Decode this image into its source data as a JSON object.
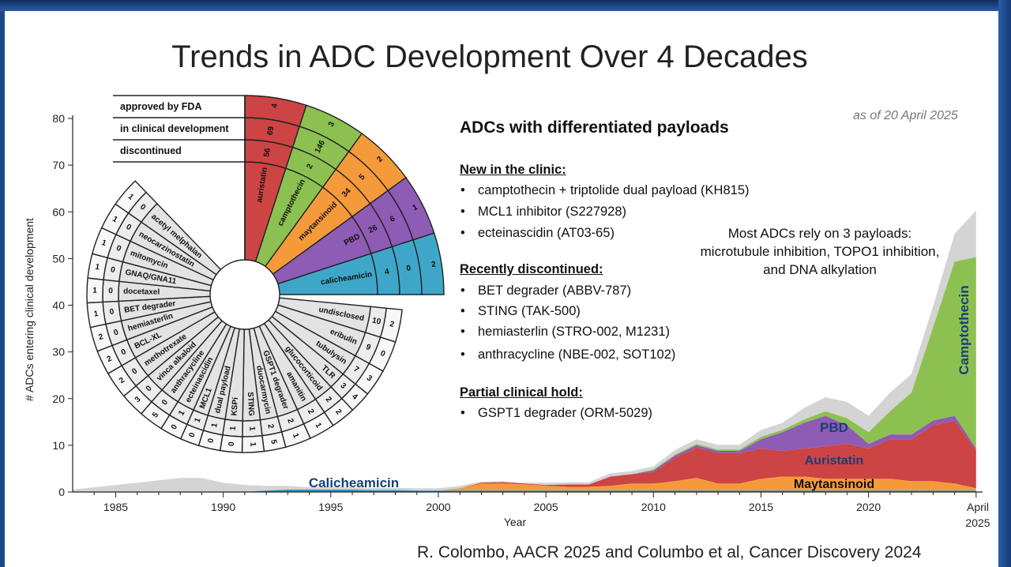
{
  "slide": {
    "title": "Trends in ADC Development Over 4 Decades",
    "as_of": "as of 20 April 2025",
    "citation": "R. Colombo, AACR 2025 and Columbo et al, Cancer Discovery 2024"
  },
  "panel": {
    "title": "ADCs with differentiated payloads",
    "sections": [
      {
        "heading": "New in the clinic:",
        "items": [
          "camptothecin + triptolide dual payload (KH815)",
          "MCL1 inhibitor (S227928)",
          "ecteinascidin (AT03-65)"
        ]
      },
      {
        "heading": "Recently discontinued:",
        "items": [
          "BET degrader (ABBV-787)",
          "STING (TAK-500)",
          "hemiasterlin (STRO-002, M1231)",
          "anthracycline (NBE-002, SOT102)"
        ]
      },
      {
        "heading": "Partial clinical hold:",
        "items": [
          "GSPT1 degrader (ORM-5029)"
        ]
      }
    ],
    "note": "Most ADCs rely on 3 payloads: microtubule inhibition, TOPO1 inhibition, and DNA alkylation"
  },
  "chart_data": [
    {
      "type": "area",
      "xlabel": "Year",
      "ylabel": "# ADCs entering clinical development",
      "ylim": [
        0,
        80
      ],
      "xlim": [
        1983,
        2025.3
      ],
      "y_ticks": [
        0,
        10,
        20,
        30,
        40,
        50,
        60,
        70,
        80
      ],
      "x_ticks": [
        "1985",
        "1990",
        "1995",
        "2000",
        "2005",
        "2010",
        "2015",
        "2020"
      ],
      "x_end_label": [
        "April",
        "2025"
      ],
      "colors": {
        "Other": "#d4d4d4",
        "Camptothecin": "#8cc152",
        "PBD": "#8e5bb5",
        "Auristatin": "#cd4444",
        "Maytansinoid": "#f59a3a",
        "Calicheamicin": "#3a8fbf"
      },
      "series_labels": [
        {
          "name": "Calicheamicin",
          "color": "#15407a"
        },
        {
          "name": "Maytansinoid",
          "color": "#111111"
        },
        {
          "name": "Auristatin",
          "color": "#15407a"
        },
        {
          "name": "PBD",
          "color": "#15407a"
        },
        {
          "name": "Camptothecin",
          "color": "#15407a"
        }
      ],
      "x": [
        1983,
        1985,
        1986,
        1987,
        1988,
        1989,
        1990,
        1991,
        1992,
        1993,
        1994,
        1995,
        1996,
        1997,
        1998,
        1999,
        2000,
        2001,
        2002,
        2003,
        2004,
        2005,
        2006,
        2007,
        2008,
        2009,
        2010,
        2011,
        2012,
        2013,
        2014,
        2015,
        2016,
        2017,
        2018,
        2019,
        2020,
        2021,
        2022,
        2023,
        2024,
        2025
      ],
      "series": [
        {
          "name": "Calicheamicin",
          "values": [
            0,
            0,
            0,
            0,
            0,
            0,
            0,
            0,
            0.3,
            0.5,
            0.5,
            0.5,
            0.5,
            0.4,
            0.4,
            0.3,
            0.3,
            0.3,
            0.3,
            0.3,
            0.3,
            0.3,
            0.3,
            0.3,
            0.3,
            0.3,
            0.3,
            0.3,
            0.3,
            0.3,
            0.3,
            0.3,
            0.3,
            0.3,
            0.3,
            0.3,
            0.3,
            0.3,
            0.3,
            0.3,
            0.3,
            0.3
          ]
        },
        {
          "name": "Maytansinoid",
          "values": [
            0,
            0,
            0,
            0,
            0,
            0,
            0,
            0,
            0,
            0,
            0,
            0,
            0,
            0,
            0,
            0,
            0,
            0.5,
            1.5,
            1.5,
            1.3,
            1.0,
            0.8,
            0.8,
            1.0,
            1.5,
            1.5,
            2.0,
            2.7,
            1.5,
            1.5,
            2.5,
            3.0,
            3.0,
            2.5,
            2.5,
            2.5,
            2.5,
            2.0,
            2.0,
            1.5,
            0.5
          ]
        },
        {
          "name": "Auristatin",
          "values": [
            0,
            0,
            0,
            0,
            0,
            0,
            0,
            0,
            0,
            0,
            0,
            0,
            0,
            0,
            0,
            0,
            0,
            0,
            0.2,
            0.3,
            0.2,
            0.2,
            0.5,
            0.5,
            2.0,
            2.0,
            2.5,
            5.0,
            6.5,
            6.5,
            6.5,
            6.5,
            5.5,
            6.0,
            7.0,
            7.5,
            6.5,
            8.5,
            9.0,
            12.0,
            13.5,
            8.0
          ]
        },
        {
          "name": "PBD",
          "values": [
            0,
            0,
            0,
            0,
            0,
            0,
            0,
            0,
            0,
            0,
            0,
            0,
            0,
            0,
            0,
            0,
            0,
            0,
            0,
            0,
            0,
            0,
            0,
            0,
            0,
            0,
            0.3,
            0.5,
            0.5,
            0.5,
            0.5,
            2.0,
            4.0,
            5.5,
            6.5,
            4.0,
            1.0,
            1.0,
            1.0,
            1.0,
            1.0,
            0.5
          ]
        },
        {
          "name": "Camptothecin",
          "values": [
            0,
            0,
            0,
            0,
            0,
            0,
            0,
            0,
            0,
            0,
            0,
            0,
            0,
            0,
            0,
            0,
            0,
            0,
            0,
            0,
            0,
            0,
            0,
            0,
            0,
            0,
            0.2,
            0.2,
            0.3,
            0.3,
            0.3,
            0.5,
            0.5,
            0.7,
            1.0,
            1.5,
            2.5,
            5.0,
            9.0,
            20.0,
            33.0,
            41.0
          ]
        },
        {
          "name": "Other",
          "values": [
            0.5,
            1.5,
            2.0,
            2.5,
            3.0,
            3.0,
            2.0,
            1.5,
            1.0,
            0.8,
            0.5,
            0.5,
            0.5,
            0.5,
            0.5,
            0.5,
            0.5,
            0.5,
            0.2,
            0.2,
            0.2,
            0.5,
            0.5,
            0.5,
            0.7,
            0.7,
            0.7,
            1.0,
            1.0,
            1.0,
            1.0,
            1.5,
            1.5,
            2.5,
            3.0,
            3.5,
            3.5,
            4.0,
            4.0,
            4.5,
            6.0,
            10.0
          ]
        }
      ]
    },
    {
      "type": "table",
      "layout": "radial",
      "rows": [
        "approved by FDA",
        "in clinical development",
        "discontinued"
      ],
      "highlighted": [
        {
          "payload": "auristatin",
          "color": "#cd4444",
          "approved": "4",
          "clinical": "69",
          "discontinued": "56"
        },
        {
          "payload": "camptothecin",
          "color": "#8cc152",
          "approved": "3",
          "clinical": "146",
          "discontinued": "2"
        },
        {
          "payload": "maytansinoid",
          "color": "#f59a3a",
          "approved": "2",
          "clinical": "5",
          "discontinued": "34"
        },
        {
          "payload": "PBD",
          "color": "#8e5bb5",
          "approved": "1",
          "clinical": "6",
          "discontinued": "26"
        },
        {
          "payload": "calicheamicin",
          "color": "#3ea7c9",
          "approved": "2",
          "clinical": "0",
          "discontinued": "4"
        }
      ],
      "others": [
        {
          "payload": "undisclosed",
          "clinical": "10",
          "discontinued": "2"
        },
        {
          "payload": "eribulin",
          "clinical": "9",
          "discontinued": "0"
        },
        {
          "payload": "tubulysin",
          "clinical": "7",
          "discontinued": "3"
        },
        {
          "payload": "TLR",
          "clinical": "3",
          "discontinued": "4"
        },
        {
          "payload": "glucocorticoid",
          "clinical": "2",
          "discontinued": "2"
        },
        {
          "payload": "amanitin",
          "clinical": "2",
          "discontinued": "1"
        },
        {
          "payload": "GSPT1 degrader",
          "clinical": "2",
          "discontinued": "1"
        },
        {
          "payload": "duocarmycin",
          "clinical": "2",
          "discontinued": "5"
        },
        {
          "payload": "STING",
          "clinical": "1",
          "discontinued": "1"
        },
        {
          "payload": "KSPi",
          "clinical": "1",
          "discontinued": "0"
        },
        {
          "payload": "dual payload",
          "clinical": "1",
          "discontinued": "0"
        },
        {
          "payload": "MCL1",
          "clinical": "1",
          "discontinued": "0"
        },
        {
          "payload": "ecteinascidin",
          "clinical": "1",
          "discontinued": "0"
        },
        {
          "payload": "anthracycline",
          "clinical": "0",
          "discontinued": "5"
        },
        {
          "payload": "vinca alkaloid",
          "clinical": "0",
          "discontinued": "3"
        },
        {
          "payload": "methotrexate",
          "clinical": "0",
          "discontinued": "2"
        },
        {
          "payload": "BCL-XL",
          "clinical": "0",
          "discontinued": "2"
        },
        {
          "payload": "hemiasterlin",
          "clinical": "0",
          "discontinued": "2"
        },
        {
          "payload": "BET degrader",
          "clinical": "0",
          "discontinued": "1"
        },
        {
          "payload": "docetaxel",
          "clinical": "0",
          "discontinued": "1"
        },
        {
          "payload": "GNAQ/GNA11",
          "clinical": "0",
          "discontinued": "1"
        },
        {
          "payload": "mitomycin",
          "clinical": "0",
          "discontinued": "1"
        },
        {
          "payload": "neocarzinostatin",
          "clinical": "0",
          "discontinued": "1"
        },
        {
          "payload": "acetyl melphalan",
          "clinical": "0",
          "discontinued": "1"
        }
      ]
    }
  ]
}
